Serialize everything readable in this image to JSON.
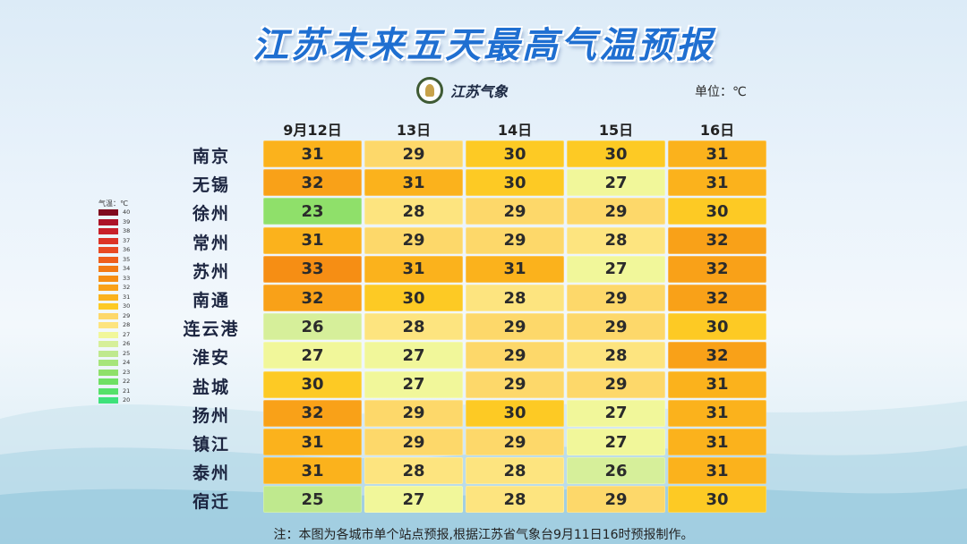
{
  "title": "江苏未来五天最高气温预报",
  "logo": {
    "text": "江苏气象"
  },
  "unit_label": "单位：℃",
  "footnote": "注：本图为各城市单个站点预报,根据江苏省气象台9月11日16时预报制作。",
  "chart_data": {
    "type": "table",
    "title": "江苏未来五天最高气温预报",
    "columns": [
      "9月12日",
      "13日",
      "14日",
      "15日",
      "16日"
    ],
    "rows": [
      {
        "city": "南京",
        "values": [
          31,
          29,
          30,
          30,
          31
        ]
      },
      {
        "city": "无锡",
        "values": [
          32,
          31,
          30,
          27,
          31
        ]
      },
      {
        "city": "徐州",
        "values": [
          23,
          28,
          29,
          29,
          30
        ]
      },
      {
        "city": "常州",
        "values": [
          31,
          29,
          29,
          28,
          32
        ]
      },
      {
        "city": "苏州",
        "values": [
          33,
          31,
          31,
          27,
          32
        ]
      },
      {
        "city": "南通",
        "values": [
          32,
          30,
          28,
          29,
          32
        ]
      },
      {
        "city": "连云港",
        "values": [
          26,
          28,
          29,
          29,
          30
        ]
      },
      {
        "city": "淮安",
        "values": [
          27,
          27,
          29,
          28,
          32
        ]
      },
      {
        "city": "盐城",
        "values": [
          30,
          27,
          29,
          29,
          31
        ]
      },
      {
        "city": "扬州",
        "values": [
          32,
          29,
          30,
          27,
          31
        ]
      },
      {
        "city": "镇江",
        "values": [
          31,
          29,
          29,
          27,
          31
        ]
      },
      {
        "city": "泰州",
        "values": [
          31,
          28,
          28,
          26,
          31
        ]
      },
      {
        "city": "宿迁",
        "values": [
          25,
          27,
          28,
          29,
          30
        ]
      }
    ],
    "legend": {
      "title": "气温：℃",
      "values": [
        40,
        39,
        38,
        37,
        36,
        35,
        34,
        33,
        32,
        31,
        30,
        29,
        28,
        27,
        26,
        25,
        24,
        23,
        22,
        21,
        20
      ]
    },
    "color_scale": {
      "20": "#3ee27a",
      "21": "#55e16a",
      "22": "#6fe064",
      "23": "#8fe06a",
      "24": "#a6e57a",
      "25": "#bfe98e",
      "26": "#d6ef9a",
      "27": "#f1f79a",
      "28": "#fde47f",
      "29": "#fdd86a",
      "30": "#fdca24",
      "31": "#fbb21c",
      "32": "#f9a118",
      "33": "#f68e14",
      "34": "#f27a15",
      "35": "#ee5e1c",
      "36": "#e84a24",
      "37": "#dc3327",
      "38": "#c8202a",
      "39": "#ac1328",
      "40": "#800a1e"
    }
  }
}
